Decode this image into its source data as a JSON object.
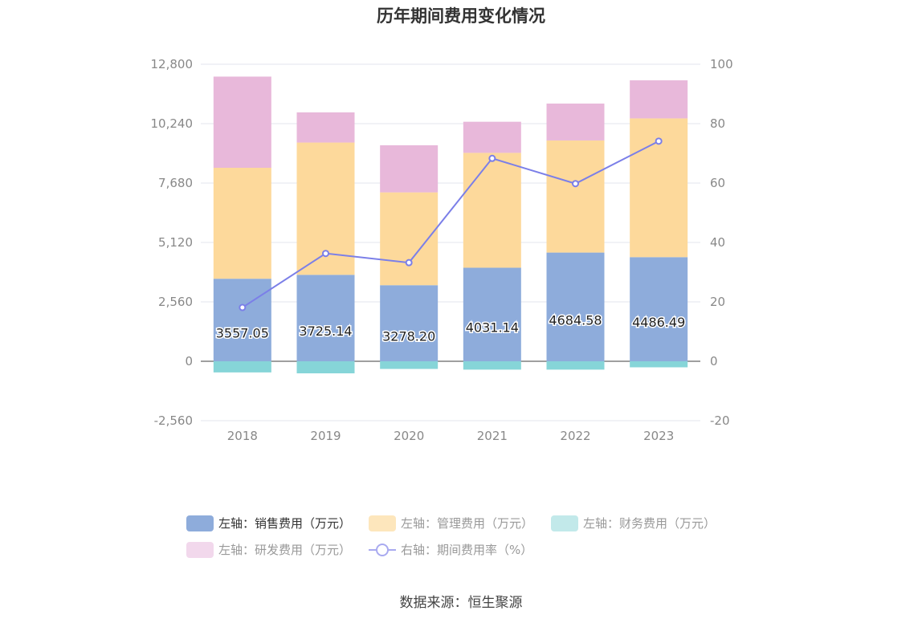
{
  "title": "历年期间费用变化情况",
  "source": "数据来源：恒生聚源",
  "colors": {
    "sales": "#8eacdb",
    "admin": "#fdd99b",
    "finance": "#86d5d8",
    "rnd": "#e8b8da",
    "rate": "#7b7fe8",
    "grid": "#e3e6ee",
    "axis_text": "#888888"
  },
  "legend": [
    {
      "label": "左轴：销售费用（万元）",
      "color": "#8eacdb",
      "type": "bar",
      "active": true
    },
    {
      "label": "左轴：管理费用（万元）",
      "color": "#fde6bc",
      "type": "bar",
      "active": false
    },
    {
      "label": "左轴：财务费用（万元）",
      "color": "#c2e9ea",
      "type": "bar",
      "active": false
    },
    {
      "label": "左轴：研发费用（万元）",
      "color": "#f2d8ec",
      "type": "bar",
      "active": false
    },
    {
      "label": "右轴：期间费用率（%）",
      "color": "#a9aaf0",
      "type": "line",
      "active": false
    }
  ],
  "chart_data": {
    "type": "bar",
    "stacked": true,
    "categories": [
      "2018",
      "2019",
      "2020",
      "2021",
      "2022",
      "2023"
    ],
    "left_axis": {
      "min": -2560,
      "max": 12800,
      "ticks": [
        -2560,
        0,
        2560,
        5120,
        7680,
        10240,
        12800
      ],
      "tick_labels": [
        "-2,560",
        "0",
        "2,560",
        "5,120",
        "7,680",
        "10,240",
        "12,800"
      ]
    },
    "right_axis": {
      "min": -20,
      "max": 100,
      "ticks": [
        -20,
        0,
        20,
        40,
        60,
        80,
        100
      ]
    },
    "series": [
      {
        "name": "左轴：销售费用（万元）",
        "axis": "left",
        "type": "bar",
        "values": [
          3557.05,
          3725.14,
          3278.2,
          4031.14,
          4684.58,
          4486.49
        ],
        "labels": [
          "3557.05",
          "3725.14",
          "3278.20",
          "4031.14",
          "4684.58",
          "4486.49"
        ]
      },
      {
        "name": "左轴：管理费用（万元）",
        "axis": "left",
        "type": "bar",
        "values": [
          4780,
          5700,
          4000,
          4950,
          4830,
          5980
        ]
      },
      {
        "name": "左轴：财务费用（万元）",
        "axis": "left",
        "type": "bar",
        "values": [
          -480,
          -520,
          -330,
          -360,
          -360,
          -260
        ]
      },
      {
        "name": "左轴：研发费用（万元）",
        "axis": "left",
        "type": "bar",
        "values": [
          3930,
          1300,
          2030,
          1340,
          1590,
          1640
        ]
      },
      {
        "name": "右轴：期间费用率（%）",
        "axis": "right",
        "type": "line",
        "values": [
          18.1,
          36.3,
          33.2,
          68.3,
          59.8,
          74.1
        ]
      }
    ],
    "grid": true,
    "legend_position": "bottom"
  }
}
